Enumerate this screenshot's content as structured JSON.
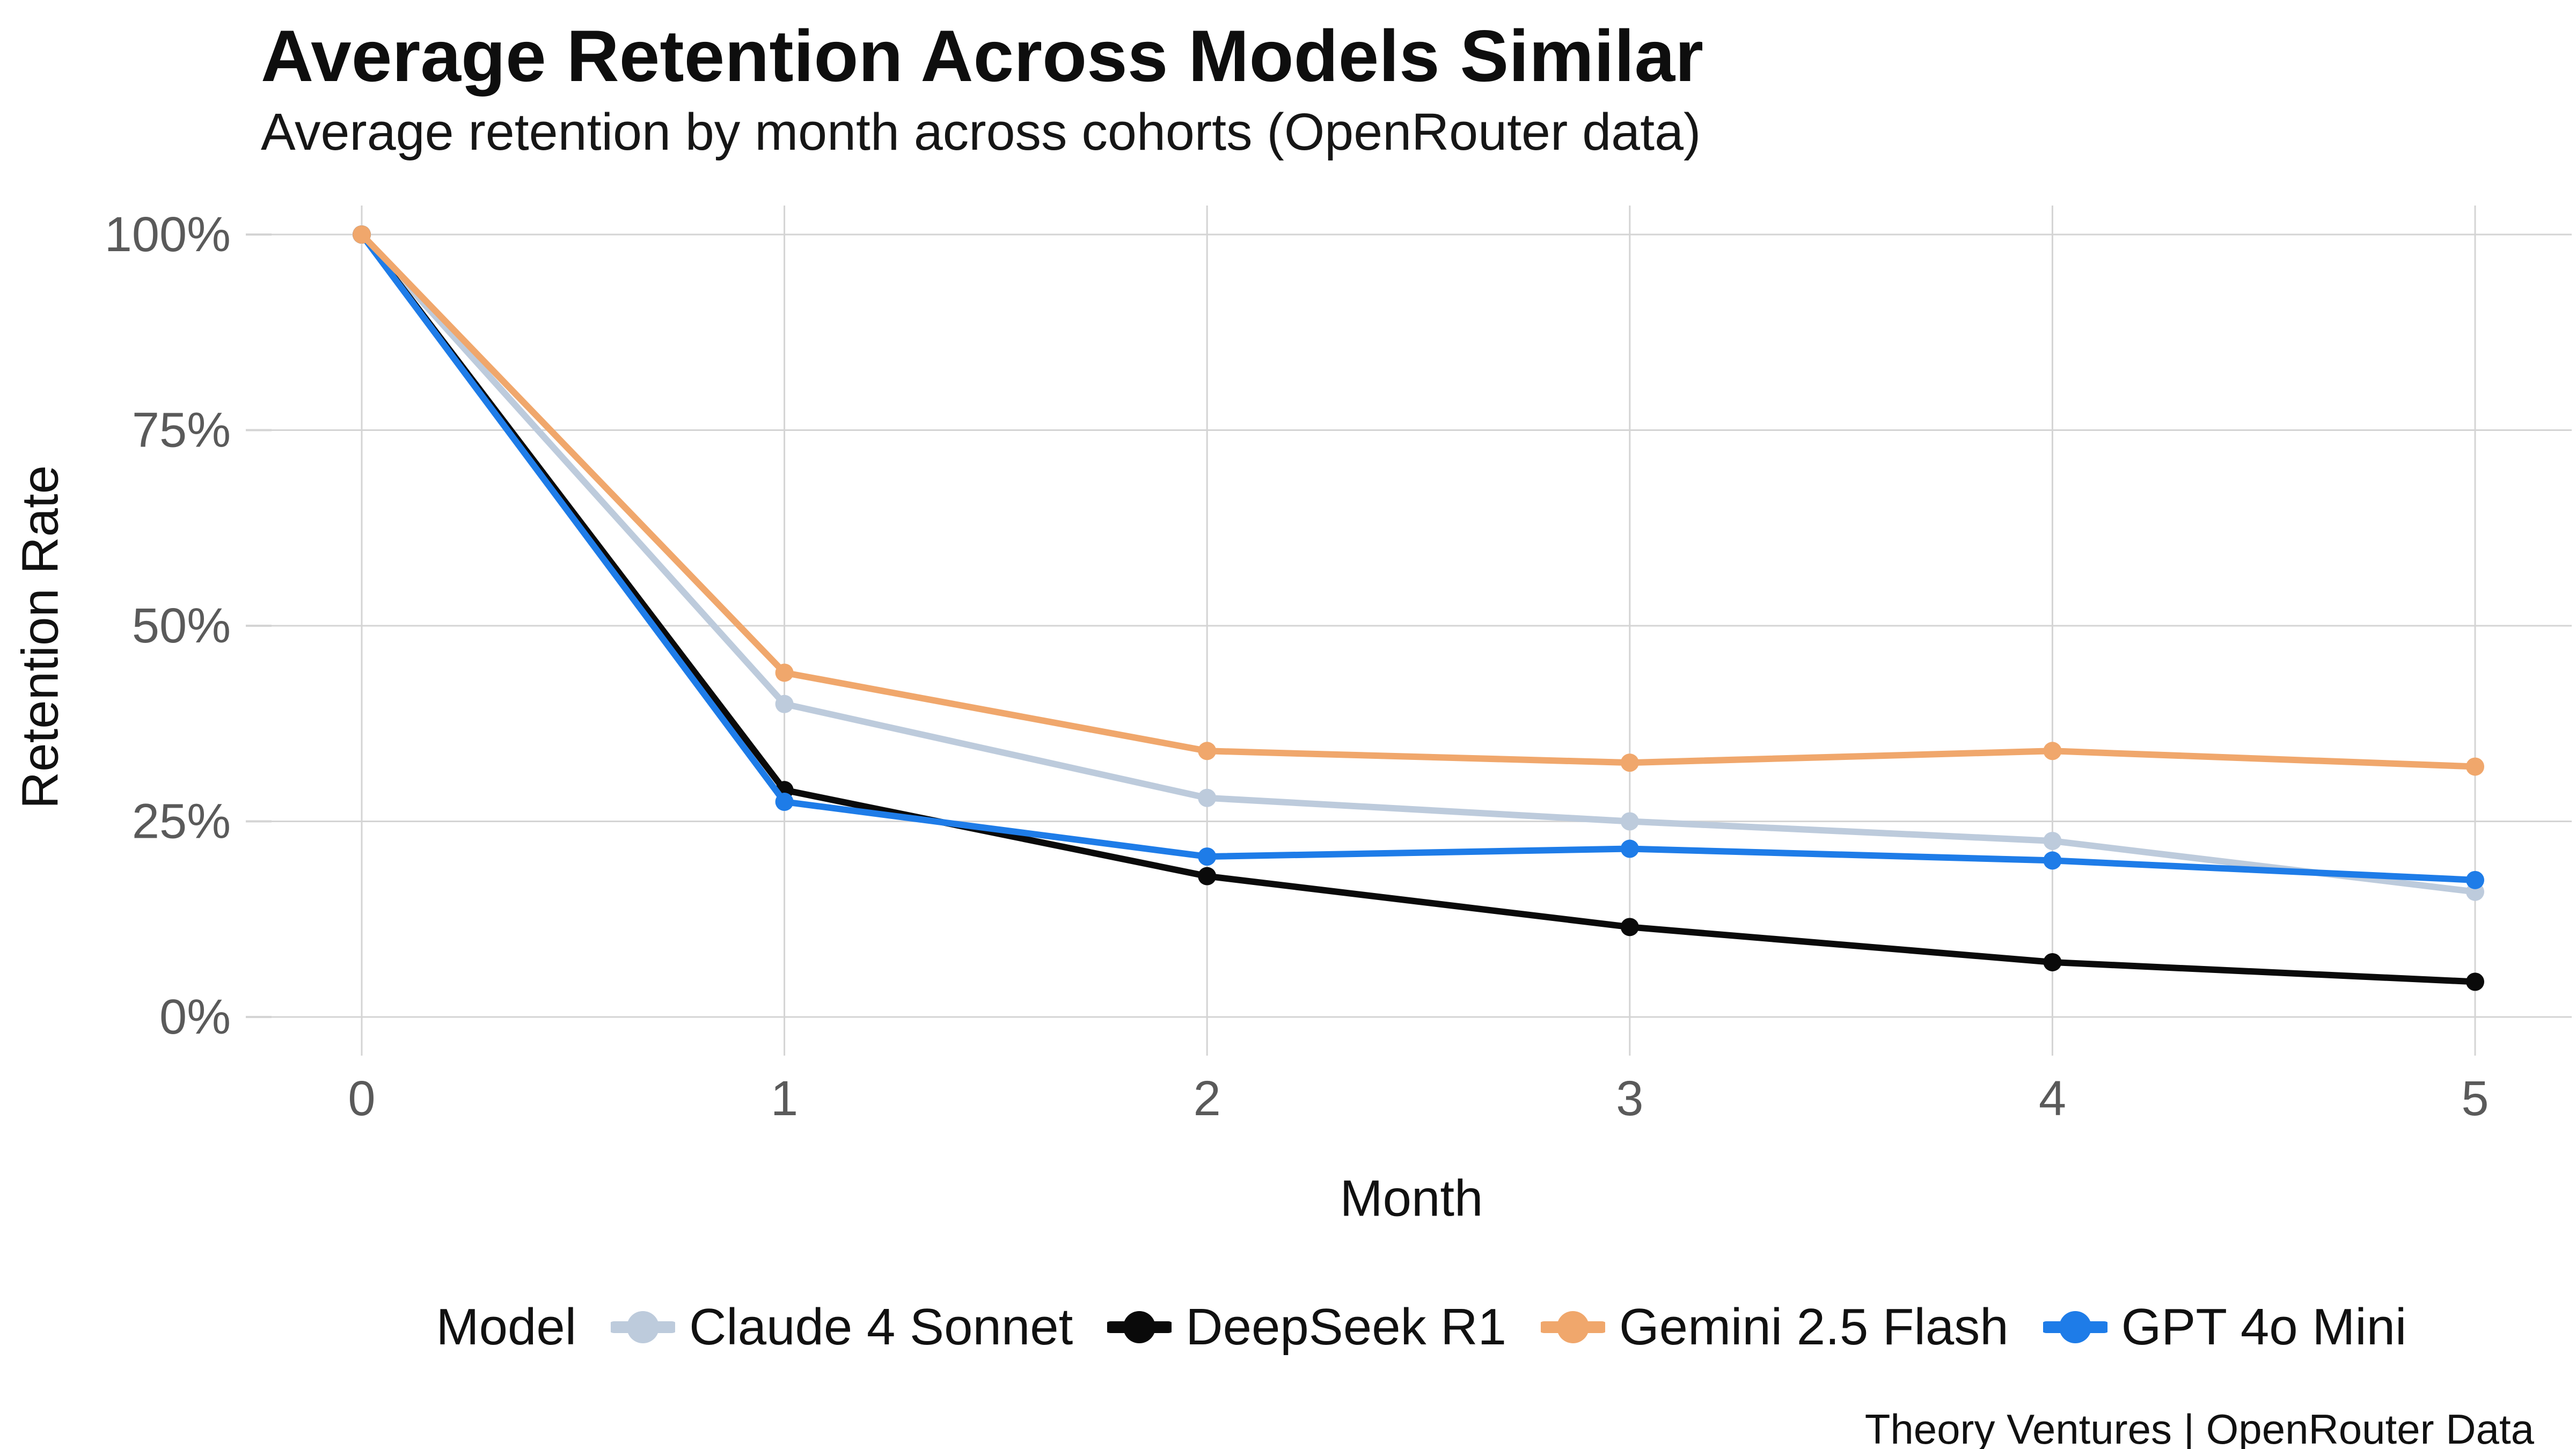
{
  "chart_data": {
    "type": "line",
    "title": "Average Retention Across Models Similar",
    "subtitle": "Average retention by month across cohorts (OpenRouter data)",
    "xlabel": "Month",
    "ylabel": "Retention Rate",
    "x": [
      0,
      1,
      2,
      3,
      4,
      5
    ],
    "x_ticks": [
      {
        "value": 0,
        "label": "0"
      },
      {
        "value": 1,
        "label": "1"
      },
      {
        "value": 2,
        "label": "2"
      },
      {
        "value": 3,
        "label": "3"
      },
      {
        "value": 4,
        "label": "4"
      },
      {
        "value": 5,
        "label": "5"
      }
    ],
    "y_ticks": [
      {
        "value": 0,
        "label": "0%"
      },
      {
        "value": 25,
        "label": "25%"
      },
      {
        "value": 50,
        "label": "50%"
      },
      {
        "value": 75,
        "label": "75%"
      },
      {
        "value": 100,
        "label": "100%"
      }
    ],
    "ylim": [
      0,
      100
    ],
    "grid": true,
    "legend_position": "bottom",
    "legend_title": "Model",
    "series": [
      {
        "name": "Claude 4 Sonnet",
        "color": "#bdcbdc",
        "values": [
          100,
          40,
          28,
          25,
          22.5,
          16
        ]
      },
      {
        "name": "DeepSeek R1",
        "color": "#0a0a0a",
        "values": [
          100,
          29,
          18,
          11.5,
          7,
          4.5
        ]
      },
      {
        "name": "Gemini 2.5 Flash",
        "color": "#f0a76c",
        "values": [
          100,
          44,
          34,
          32.5,
          34,
          32
        ]
      },
      {
        "name": "GPT 4o Mini",
        "color": "#1e7ce8",
        "values": [
          100,
          27.5,
          20.5,
          21.5,
          20,
          17.5
        ]
      }
    ]
  },
  "footer": {
    "credit": "Theory Ventures | OpenRouter Data"
  },
  "colors": {
    "background": "#ffffff",
    "grid": "#d4d4d4",
    "tick_label": "#5a5a5a",
    "axis_title": "#111111",
    "text": "#111111"
  }
}
